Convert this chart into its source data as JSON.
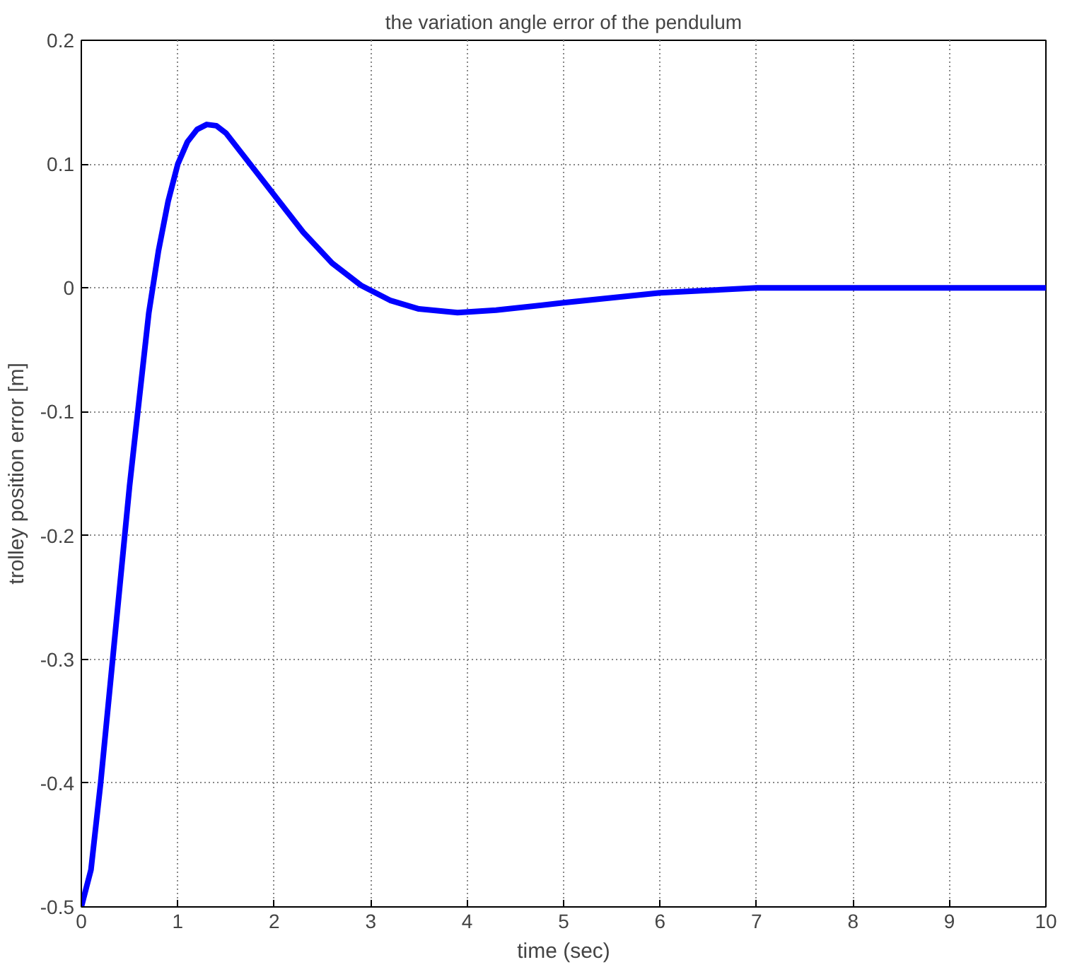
{
  "chart_data": {
    "type": "line",
    "title": "the variation angle error of the pendulum",
    "xlabel": "time (sec)",
    "ylabel": "trolley position error [m]",
    "x": [
      0,
      0.1,
      0.2,
      0.3,
      0.4,
      0.5,
      0.6,
      0.7,
      0.8,
      0.9,
      1.0,
      1.1,
      1.2,
      1.3,
      1.4,
      1.5,
      1.7,
      2.0,
      2.3,
      2.6,
      2.9,
      3.2,
      3.5,
      3.9,
      4.3,
      5.0,
      5.5,
      6.0,
      6.5,
      7.0,
      8.0,
      9.0,
      10.0
    ],
    "series": [
      {
        "color": "#0000ff",
        "values": [
          -0.5,
          -0.47,
          -0.4,
          -0.32,
          -0.24,
          -0.16,
          -0.09,
          -0.02,
          0.03,
          0.07,
          0.1,
          0.118,
          0.128,
          0.132,
          0.131,
          0.125,
          0.105,
          0.075,
          0.045,
          0.02,
          0.002,
          -0.01,
          -0.017,
          -0.02,
          -0.018,
          -0.012,
          -0.008,
          -0.004,
          -0.002,
          0,
          0,
          0,
          0
        ]
      }
    ],
    "xlim": [
      0,
      10
    ],
    "ylim": [
      -0.5,
      0.2
    ],
    "xticks": [
      0,
      1,
      2,
      3,
      4,
      5,
      6,
      7,
      8,
      9,
      10
    ],
    "yticks": [
      -0.5,
      -0.4,
      -0.3,
      -0.2,
      -0.1,
      0,
      0.1,
      0.2
    ],
    "grid": true,
    "marker": "none",
    "line_style": "solid"
  }
}
